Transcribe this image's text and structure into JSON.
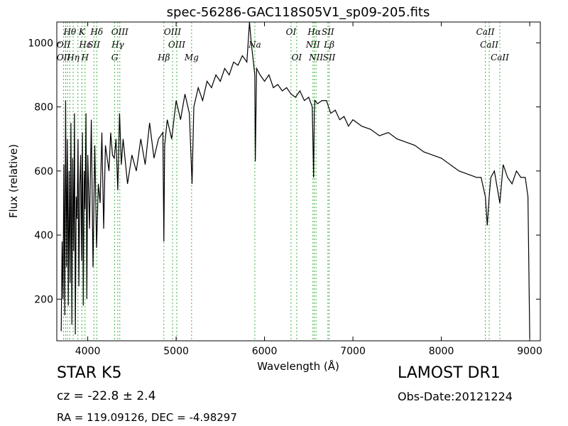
{
  "chart_data": {
    "type": "line",
    "title": "spec-56286-GAC118S05V1_sp09-205.fits",
    "xlabel": "Wavelength (Å)",
    "ylabel": "Flux (relative)",
    "xlim": [
      3650,
      9120
    ],
    "ylim": [
      70,
      1065
    ],
    "xticks": [
      4000,
      5000,
      6000,
      7000,
      8000,
      9000
    ],
    "yticks": [
      200,
      400,
      600,
      800,
      1000
    ],
    "grid": false,
    "line_color": "#000000",
    "marker_color": "#3cb43c",
    "series": [
      {
        "x": [
          3700,
          3710,
          3720,
          3730,
          3740,
          3750,
          3760,
          3770,
          3780,
          3790,
          3800,
          3810,
          3820,
          3830,
          3840,
          3850,
          3860,
          3870,
          3880,
          3890,
          3900,
          3910,
          3920,
          3930,
          3940,
          3950,
          3960,
          3970,
          3980,
          3990,
          4000,
          4020,
          4040,
          4060,
          4080,
          4100,
          4120,
          4140,
          4160,
          4180,
          4200,
          4220,
          4240,
          4260,
          4280,
          4300,
          4320,
          4340,
          4360,
          4380,
          4400,
          4450,
          4500,
          4550,
          4600,
          4650,
          4700,
          4750,
          4800,
          4850,
          4861,
          4870,
          4900,
          4950,
          5000,
          5050,
          5100,
          5150,
          5180,
          5200,
          5250,
          5300,
          5350,
          5400,
          5450,
          5500,
          5550,
          5600,
          5650,
          5700,
          5750,
          5800,
          5830,
          5850,
          5870,
          5890,
          5896,
          5910,
          5950,
          6000,
          6050,
          6100,
          6150,
          6200,
          6250,
          6300,
          6350,
          6400,
          6450,
          6500,
          6540,
          6555,
          6563,
          6570,
          6600,
          6650,
          6700,
          6750,
          6800,
          6850,
          6900,
          6950,
          7000,
          7100,
          7200,
          7300,
          7400,
          7500,
          7600,
          7700,
          7800,
          7900,
          8000,
          8100,
          8200,
          8300,
          8400,
          8450,
          8498,
          8520,
          8542,
          8560,
          8600,
          8662,
          8700,
          8750,
          8800,
          8850,
          8900,
          8950,
          8980,
          9000
        ],
        "y": [
          100,
          380,
          200,
          620,
          150,
          820,
          300,
          700,
          180,
          600,
          250,
          750,
          120,
          640,
          350,
          780,
          90,
          520,
          450,
          700,
          240,
          560,
          650,
          320,
          720,
          180,
          600,
          480,
          780,
          200,
          650,
          420,
          760,
          300,
          680,
          360,
          560,
          500,
          720,
          420,
          680,
          640,
          600,
          720,
          650,
          640,
          700,
          540,
          780,
          620,
          700,
          560,
          650,
          600,
          700,
          620,
          750,
          640,
          700,
          720,
          380,
          680,
          760,
          700,
          820,
          760,
          840,
          780,
          560,
          800,
          860,
          820,
          880,
          860,
          900,
          880,
          920,
          900,
          940,
          930,
          960,
          940,
          1080,
          1000,
          950,
          900,
          630,
          920,
          900,
          880,
          900,
          860,
          870,
          850,
          860,
          840,
          830,
          850,
          820,
          830,
          800,
          580,
          780,
          820,
          810,
          820,
          820,
          780,
          790,
          760,
          770,
          740,
          760,
          740,
          730,
          710,
          720,
          700,
          690,
          680,
          660,
          650,
          640,
          620,
          600,
          590,
          580,
          580,
          520,
          430,
          520,
          580,
          600,
          500,
          620,
          580,
          560,
          600,
          580,
          580,
          520,
          80
        ]
      }
    ],
    "annotations": [
      {
        "text": "Hθ",
        "x": 3797,
        "y_pos": "top"
      },
      {
        "text": "K",
        "x": 3934,
        "y_pos": "top"
      },
      {
        "text": "Hδ",
        "x": 4102,
        "y_pos": "top"
      },
      {
        "text": "OIII",
        "x": 4363,
        "y_pos": "top"
      },
      {
        "text": "OIII",
        "x": 4959,
        "y_pos": "top"
      },
      {
        "text": "OI",
        "x": 6300,
        "y_pos": "top"
      },
      {
        "text": "Hα",
        "x": 6563,
        "y_pos": "top"
      },
      {
        "text": "SII",
        "x": 6717,
        "y_pos": "top"
      },
      {
        "text": "CaII",
        "x": 8498,
        "y_pos": "top"
      },
      {
        "text": "OII",
        "x": 3727,
        "y_pos": "upper"
      },
      {
        "text": "Hε",
        "x": 3970,
        "y_pos": "upper"
      },
      {
        "text": "SII",
        "x": 4069,
        "y_pos": "upper"
      },
      {
        "text": "Hγ",
        "x": 4340,
        "y_pos": "upper"
      },
      {
        "text": "OIII",
        "x": 5007,
        "y_pos": "upper"
      },
      {
        "text": "Na",
        "x": 5890,
        "y_pos": "upper"
      },
      {
        "text": "NII",
        "x": 6548,
        "y_pos": "upper"
      },
      {
        "text": "Lβ",
        "x": 6731,
        "y_pos": "upper"
      },
      {
        "text": "CaII",
        "x": 8542,
        "y_pos": "upper"
      },
      {
        "text": "OII",
        "x": 3727,
        "y_pos": "lower"
      },
      {
        "text": "Hη",
        "x": 3835,
        "y_pos": "lower"
      },
      {
        "text": "H",
        "x": 3969,
        "y_pos": "lower"
      },
      {
        "text": "G",
        "x": 4305,
        "y_pos": "lower"
      },
      {
        "text": "Hβ",
        "x": 4861,
        "y_pos": "lower"
      },
      {
        "text": "Mg",
        "x": 5175,
        "y_pos": "lower"
      },
      {
        "text": "OI",
        "x": 6364,
        "y_pos": "lower"
      },
      {
        "text": "NII",
        "x": 6583,
        "y_pos": "lower"
      },
      {
        "text": "SII",
        "x": 6731,
        "y_pos": "lower"
      },
      {
        "text": "CaII",
        "x": 8662,
        "y_pos": "lower"
      }
    ],
    "marker_lines_x": [
      3727,
      3750,
      3771,
      3797,
      3835,
      3889,
      3934,
      3969,
      4069,
      4102,
      4305,
      4340,
      4363,
      4861,
      4959,
      5007,
      5175,
      5890,
      6300,
      6364,
      6548,
      6563,
      6583,
      6717,
      6731,
      8498,
      8542,
      8662
    ]
  },
  "footer": {
    "object_class": "STAR   K5",
    "redshift": "cz = -22.8  ± 2.4",
    "coords": "RA = 119.09126, DEC = -4.98297",
    "survey": "LAMOST DR1",
    "obs_date": "Obs-Date:20121224"
  }
}
